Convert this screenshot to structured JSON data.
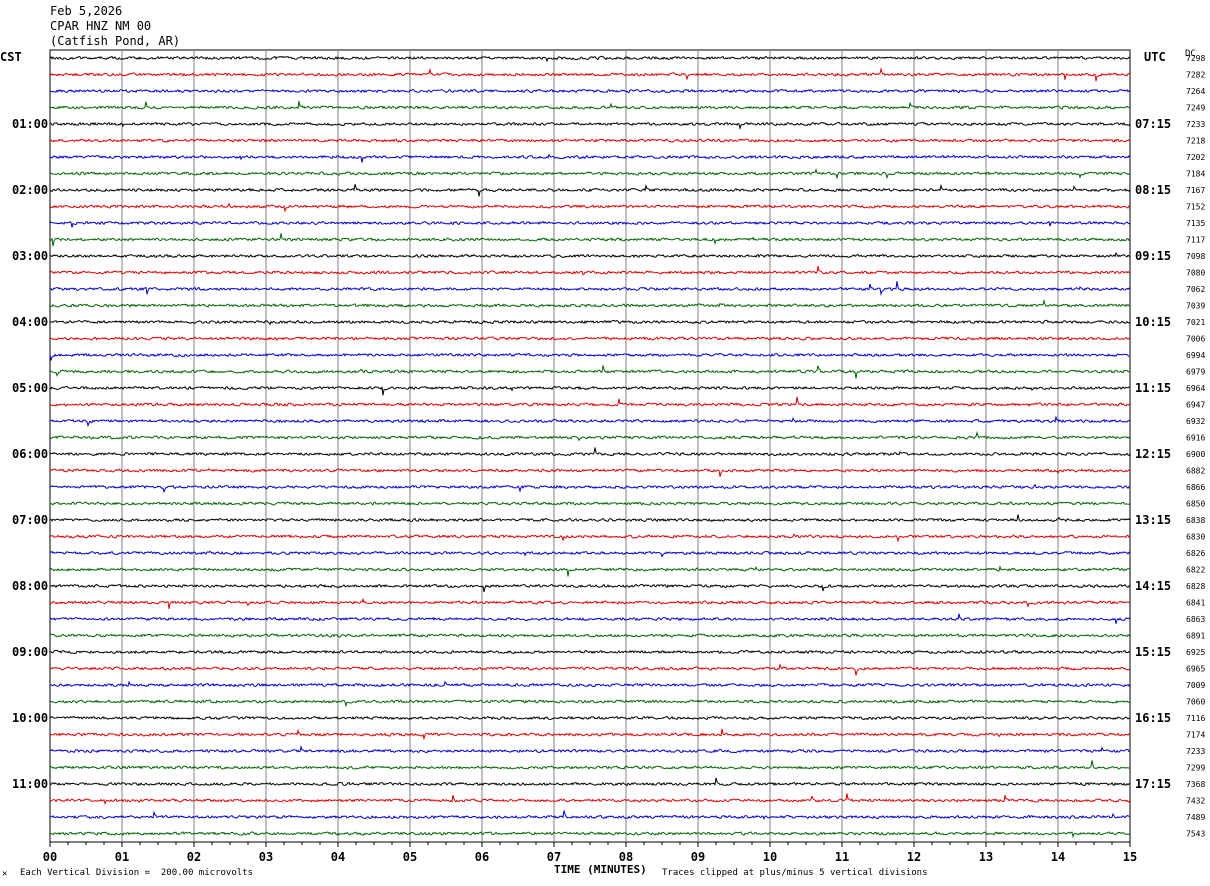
{
  "header": {
    "date": "Feb 5,2026",
    "station": "CPAR HNZ NM 00",
    "location": "(Catfish Pond, AR)"
  },
  "left_timezone": "CST",
  "right_timezone": "UTC",
  "dc_label": "DC",
  "footer": {
    "vertical_division": "Each Vertical Division =  200.00 microvolts",
    "xlabel": "TIME (MINUTES)",
    "clip_note": "Traces clipped at plus/minus 5 vertical divisions"
  },
  "chart_data": {
    "type": "line",
    "title": "CPAR HNZ NM 00",
    "xlabel": "TIME (MINUTES)",
    "xlim": [
      0,
      15
    ],
    "x_ticks": [
      "00",
      "01",
      "02",
      "03",
      "04",
      "05",
      "06",
      "07",
      "08",
      "09",
      "10",
      "11",
      "12",
      "13",
      "14",
      "15"
    ],
    "trace_minutes": 15,
    "trace_count": 48,
    "trace_colors": [
      "#000000",
      "#dd0000",
      "#0000cc",
      "#006600"
    ],
    "grid": true,
    "left_hour_labels": [
      "01:00",
      "02:00",
      "03:00",
      "04:00",
      "05:00",
      "06:00",
      "07:00",
      "08:00",
      "09:00",
      "10:00",
      "11:00"
    ],
    "right_hour_labels": [
      "07:15",
      "08:15",
      "09:15",
      "10:15",
      "11:15",
      "12:15",
      "13:15",
      "14:15",
      "15:15",
      "16:15",
      "17:15"
    ],
    "dc_offsets": [
      "7298",
      "7282",
      "7264",
      "7249",
      "7233",
      "7218",
      "7202",
      "7184",
      "7167",
      "7152",
      "7135",
      "7117",
      "7098",
      "7080",
      "7062",
      "7039",
      "7021",
      "7006",
      "6994",
      "6979",
      "6964",
      "6947",
      "6932",
      "6916",
      "6900",
      "6882",
      "6866",
      "6850",
      "6838",
      "6830",
      "6826",
      "6822",
      "6828",
      "6841",
      "6863",
      "6891",
      "6925",
      "6965",
      "7009",
      "7060",
      "7116",
      "7174",
      "7233",
      "7299",
      "7368",
      "7432",
      "7489",
      "7543"
    ]
  }
}
